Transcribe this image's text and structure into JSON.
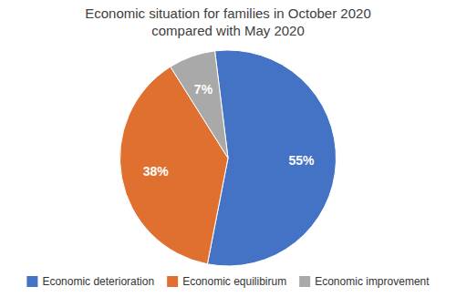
{
  "chart_data": {
    "type": "pie",
    "title": "Economic situation for families in October 2020\ncompared with May 2020",
    "categories": [
      "Economic deterioration",
      "Economic equilibirum",
      "Economic improvement"
    ],
    "values": [
      55,
      38,
      7
    ],
    "value_labels": [
      "55%",
      "38%",
      "7%"
    ],
    "colors": [
      "#4472C4",
      "#E07030",
      "#A9A9A9"
    ],
    "data_labels": true,
    "legend": "bottom"
  }
}
